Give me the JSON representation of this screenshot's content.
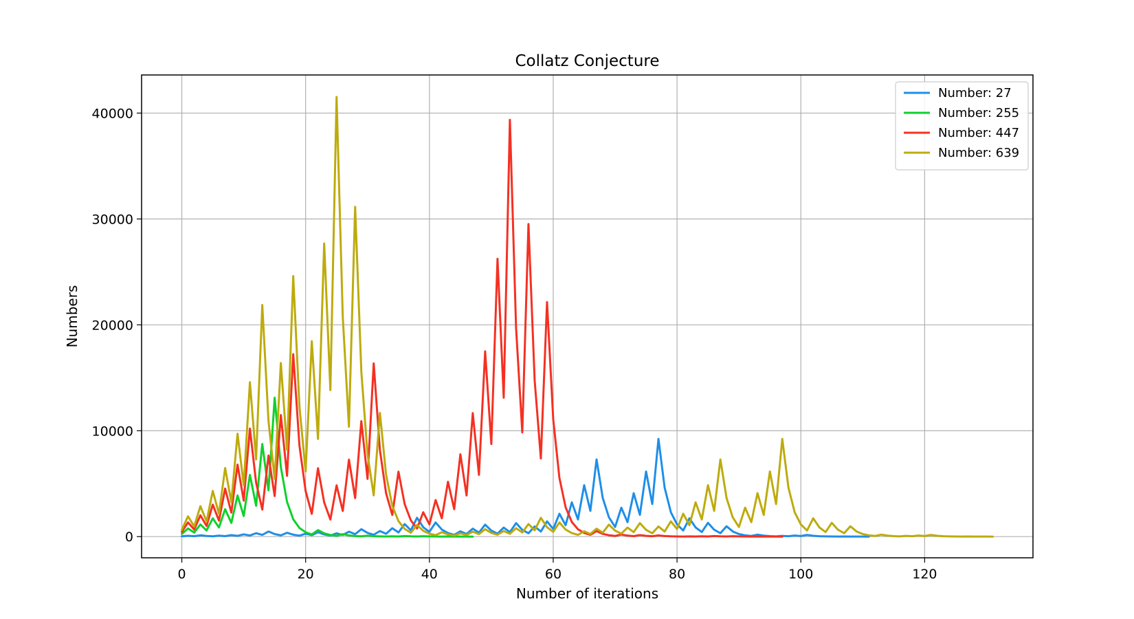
{
  "chart_data": {
    "type": "line",
    "title": "Collatz Conjecture",
    "xlabel": "Number of iterations",
    "ylabel": "Numbers",
    "xlim": [
      -6.5,
      137.5
    ],
    "ylim": [
      -2000,
      43600
    ],
    "xticks": [
      0,
      20,
      40,
      60,
      80,
      100,
      120
    ],
    "yticks": [
      0,
      10000,
      20000,
      30000,
      40000
    ],
    "grid": true,
    "legend_position": "top-right",
    "series": [
      {
        "name": "Number: 27",
        "color": "#1f8ee8",
        "values": [
          27,
          82,
          41,
          124,
          62,
          31,
          94,
          47,
          142,
          71,
          214,
          107,
          322,
          161,
          484,
          242,
          121,
          364,
          182,
          91,
          274,
          137,
          412,
          206,
          103,
          310,
          155,
          466,
          233,
          700,
          350,
          175,
          526,
          263,
          790,
          395,
          1186,
          593,
          1780,
          890,
          445,
          1336,
          668,
          334,
          167,
          502,
          251,
          754,
          377,
          1132,
          566,
          283,
          850,
          425,
          1276,
          638,
          319,
          958,
          479,
          1438,
          719,
          2158,
          1079,
          3238,
          1619,
          4858,
          2429,
          7288,
          3644,
          1822,
          911,
          2734,
          1367,
          4102,
          2051,
          6154,
          3077,
          9232,
          4616,
          2308,
          1154,
          577,
          1732,
          866,
          433,
          1300,
          650,
          325,
          976,
          488,
          244,
          122,
          61,
          184,
          92,
          46,
          23,
          70,
          35,
          106,
          53,
          160,
          80,
          40,
          20,
          10,
          5,
          16,
          8,
          4,
          2,
          1
        ]
      },
      {
        "name": "Number: 255",
        "color": "#0ed12b",
        "values": [
          255,
          766,
          383,
          1150,
          575,
          1726,
          863,
          2590,
          1295,
          3886,
          1943,
          5830,
          2915,
          8746,
          4373,
          13120,
          6560,
          3280,
          1640,
          820,
          410,
          205,
          616,
          308,
          154,
          77,
          232,
          116,
          58,
          29,
          88,
          44,
          22,
          11,
          34,
          17,
          52,
          26,
          13,
          40,
          20,
          10,
          5,
          16,
          8,
          4,
          2,
          1
        ]
      },
      {
        "name": "Number: 447",
        "color": "#f53022",
        "values": [
          447,
          1342,
          671,
          2014,
          1007,
          3022,
          1511,
          4534,
          2267,
          6802,
          3401,
          10204,
          5102,
          2551,
          7654,
          3827,
          11482,
          5741,
          17224,
          8612,
          4306,
          2153,
          6460,
          3230,
          1615,
          4846,
          2423,
          7270,
          3635,
          10906,
          5453,
          16360,
          8180,
          4090,
          2045,
          6136,
          3068,
          1534,
          767,
          2302,
          1151,
          3454,
          1727,
          5182,
          2591,
          7774,
          3887,
          11662,
          5831,
          17494,
          8747,
          26242,
          13121,
          39364,
          19682,
          9841,
          29524,
          14762,
          7381,
          22144,
          11072,
          5536,
          2768,
          1384,
          692,
          346,
          173,
          520,
          260,
          130,
          65,
          196,
          98,
          49,
          148,
          74,
          37,
          112,
          56,
          28,
          14,
          7,
          22,
          11,
          34,
          17,
          52,
          26,
          13,
          40,
          20,
          10,
          5,
          16,
          8,
          4,
          2,
          1
        ]
      },
      {
        "name": "Number: 639",
        "color": "#bdab0d",
        "values": [
          639,
          1918,
          959,
          2878,
          1439,
          4318,
          2159,
          6478,
          3239,
          9718,
          4859,
          14578,
          7289,
          21868,
          10934,
          5467,
          16402,
          8201,
          24604,
          12302,
          6151,
          18454,
          9227,
          27682,
          13841,
          41524,
          20762,
          10381,
          31144,
          15572,
          7786,
          3893,
          11680,
          5840,
          2920,
          1460,
          730,
          365,
          1096,
          548,
          274,
          137,
          412,
          206,
          103,
          310,
          155,
          466,
          233,
          700,
          350,
          175,
          526,
          263,
          790,
          395,
          1186,
          593,
          1780,
          890,
          445,
          1336,
          668,
          334,
          167,
          502,
          251,
          754,
          377,
          1132,
          566,
          283,
          850,
          425,
          1276,
          638,
          319,
          958,
          479,
          1438,
          719,
          2158,
          1079,
          3238,
          1619,
          4858,
          2429,
          7288,
          3644,
          1822,
          911,
          2734,
          1367,
          4102,
          2051,
          6154,
          3077,
          9232,
          4616,
          2308,
          1154,
          577,
          1732,
          866,
          433,
          1300,
          650,
          325,
          976,
          488,
          244,
          122,
          61,
          184,
          92,
          46,
          23,
          70,
          35,
          106,
          53,
          160,
          80,
          40,
          20,
          10,
          5,
          16,
          8,
          4,
          2,
          1
        ]
      }
    ]
  }
}
